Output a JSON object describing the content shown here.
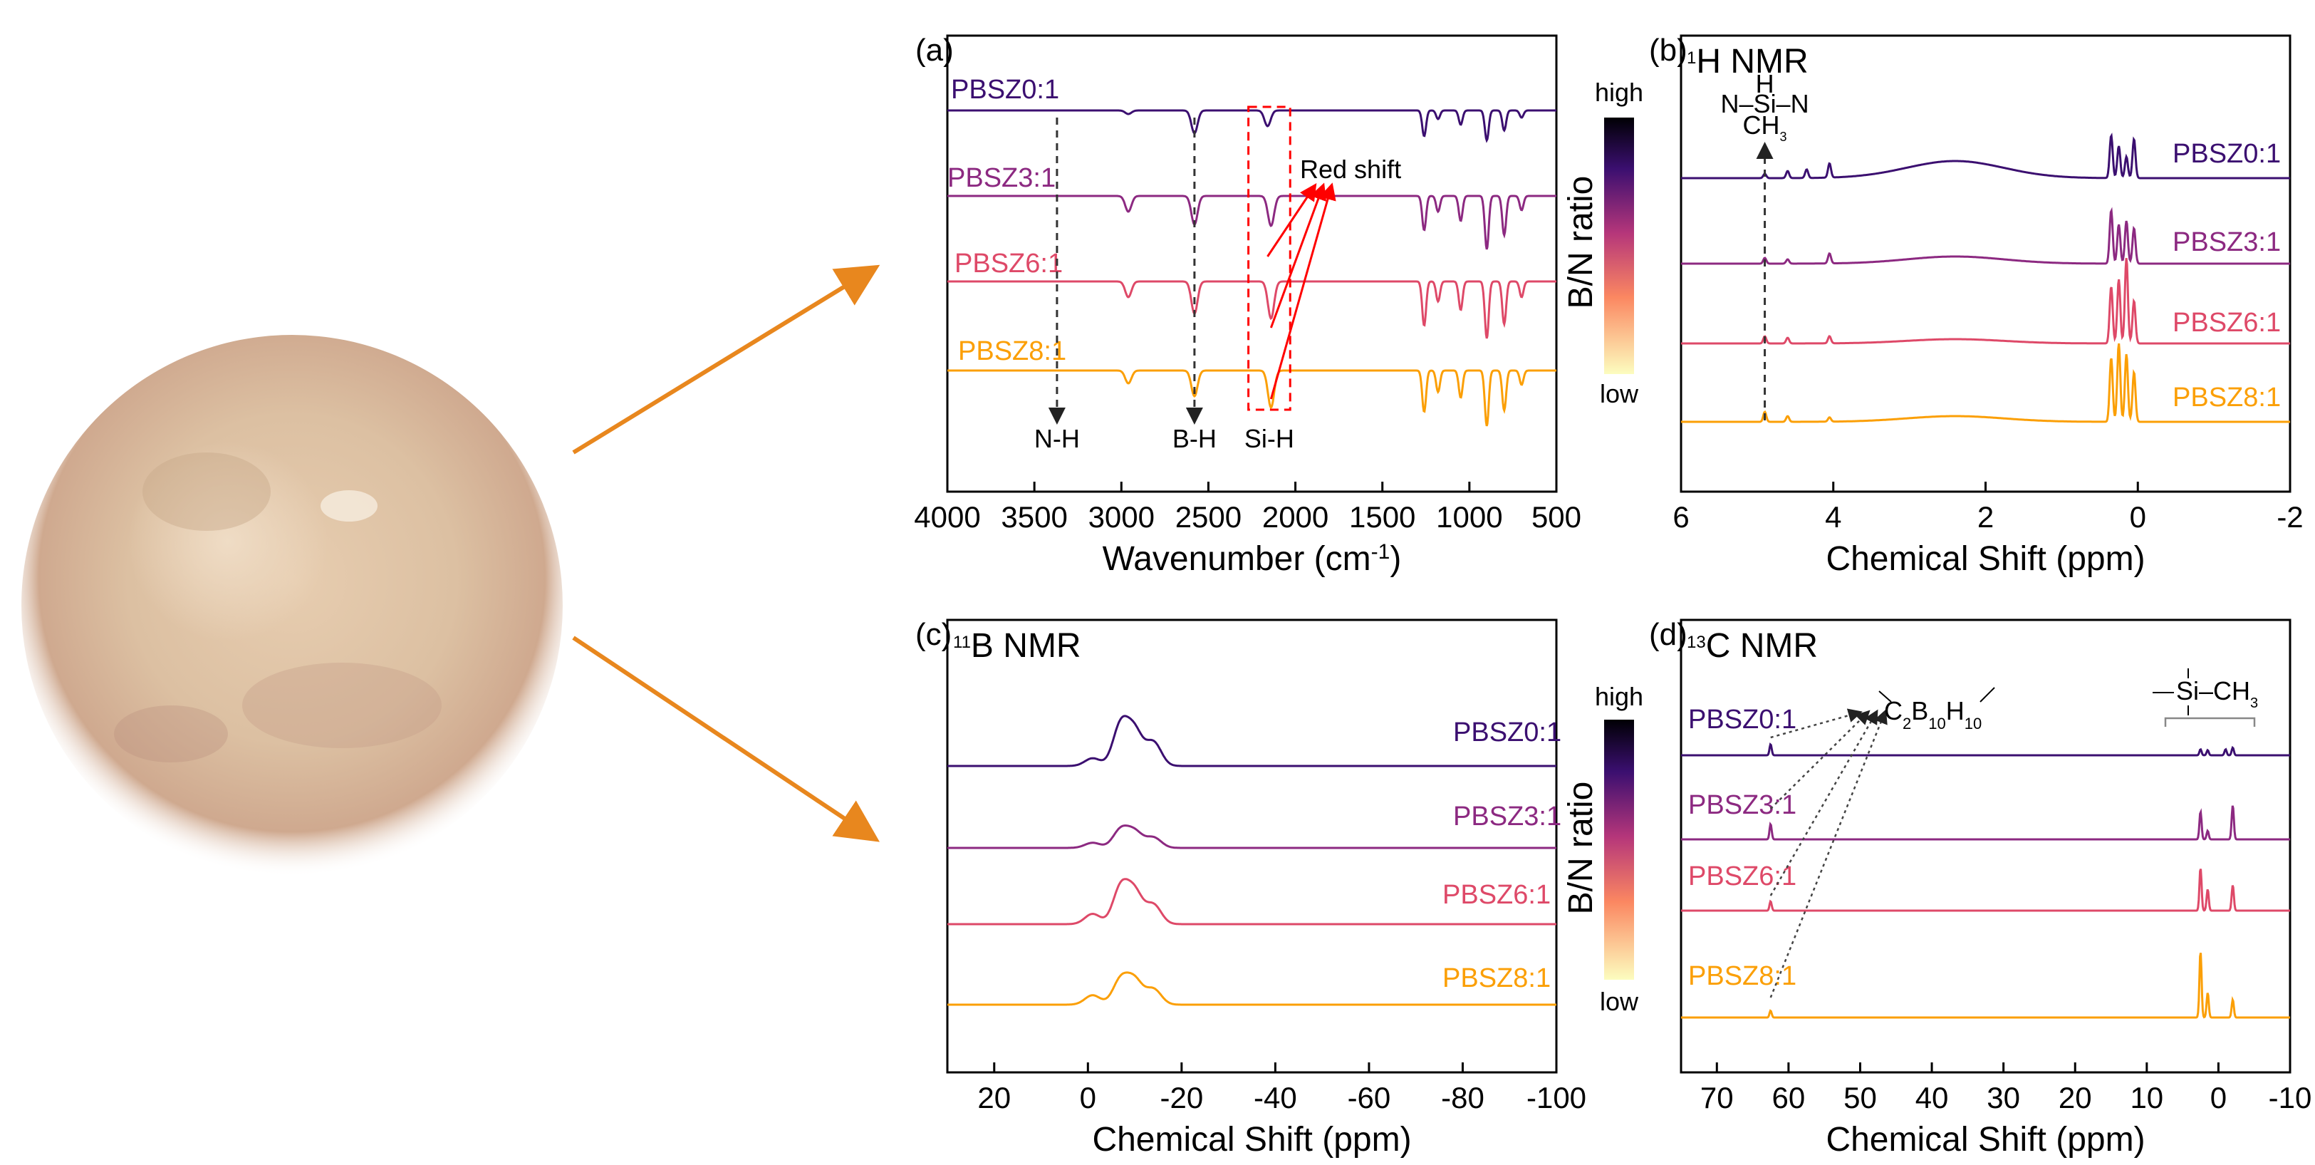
{
  "colors": {
    "s0": "#3b0f70",
    "s1": "#8c2981",
    "s2": "#de4968",
    "s3": "#fb9f06",
    "arrow": "#e8871e",
    "red": "#ff0000"
  },
  "series_names": [
    "PBSZ0:1",
    "PBSZ3:1",
    "PBSZ6:1",
    "PBSZ8:1"
  ],
  "colorbar": {
    "title": "B/N ratio",
    "high": "high",
    "low": "low"
  },
  "photo": {
    "description_icon": "sample-photo-icon"
  },
  "chart_data": [
    {
      "panel": "(a)",
      "type": "line",
      "title": "",
      "xlabel": "Wavenumber (cm",
      "xlabel_sup": "-1",
      "xlabel_end": ")",
      "xlim": [
        4000,
        500
      ],
      "xticks": [
        4000,
        3500,
        3000,
        2500,
        2000,
        1500,
        1000,
        500
      ],
      "series": [
        {
          "name": "PBSZ0:1",
          "peaks": [
            [
              2960,
              5
            ],
            [
              2580,
              32
            ],
            [
              2160,
              22
            ],
            [
              1260,
              36
            ],
            [
              1180,
              12
            ],
            [
              1050,
              20
            ],
            [
              900,
              42
            ],
            [
              800,
              28
            ],
            [
              700,
              10
            ]
          ]
        },
        {
          "name": "PBSZ3:1",
          "peaks": [
            [
              2960,
              22
            ],
            [
              2580,
              40
            ],
            [
              2140,
              42
            ],
            [
              1260,
              48
            ],
            [
              1180,
              22
            ],
            [
              1050,
              35
            ],
            [
              900,
              75
            ],
            [
              800,
              55
            ],
            [
              700,
              20
            ]
          ]
        },
        {
          "name": "PBSZ6:1",
          "peaks": [
            [
              2960,
              22
            ],
            [
              2580,
              45
            ],
            [
              2140,
              52
            ],
            [
              1260,
              62
            ],
            [
              1180,
              28
            ],
            [
              1050,
              40
            ],
            [
              900,
              80
            ],
            [
              800,
              60
            ],
            [
              700,
              22
            ]
          ]
        },
        {
          "name": "PBSZ8:1",
          "peaks": [
            [
              2960,
              18
            ],
            [
              2580,
              36
            ],
            [
              2140,
              52
            ],
            [
              1260,
              58
            ],
            [
              1180,
              30
            ],
            [
              1050,
              38
            ],
            [
              900,
              78
            ],
            [
              800,
              56
            ],
            [
              700,
              20
            ]
          ]
        }
      ],
      "annotations": {
        "nh": "N-H",
        "bh": "B-H",
        "sih": "Si-H",
        "red_shift": "Red shift"
      },
      "marker_x": {
        "nh": 3370,
        "bh": 2580,
        "sih_box": [
          2270,
          2030
        ]
      }
    },
    {
      "panel": "(b)",
      "type": "line",
      "title": "H NMR",
      "title_sup": "1",
      "xlabel": "Chemical Shift (ppm)",
      "xlim": [
        6,
        -2
      ],
      "xticks": [
        6,
        4,
        2,
        0,
        -2
      ],
      "series": [
        {
          "name": "PBSZ0:1",
          "peaks": [
            [
              4.9,
              6
            ],
            [
              4.6,
              10
            ],
            [
              4.35,
              12
            ],
            [
              4.05,
              20
            ],
            [
              0.35,
              60
            ],
            [
              0.25,
              45
            ],
            [
              0.15,
              30
            ],
            [
              0.05,
              55
            ]
          ]
        },
        {
          "name": "PBSZ3:1",
          "peaks": [
            [
              4.9,
              8
            ],
            [
              4.6,
              6
            ],
            [
              4.05,
              14
            ],
            [
              0.35,
              75
            ],
            [
              0.25,
              55
            ],
            [
              0.15,
              60
            ],
            [
              0.05,
              50
            ]
          ]
        },
        {
          "name": "PBSZ6:1",
          "peaks": [
            [
              4.9,
              10
            ],
            [
              4.6,
              8
            ],
            [
              4.05,
              10
            ],
            [
              0.35,
              80
            ],
            [
              0.25,
              90
            ],
            [
              0.15,
              120
            ],
            [
              0.05,
              60
            ]
          ]
        },
        {
          "name": "PBSZ8:1",
          "peaks": [
            [
              4.9,
              14
            ],
            [
              4.6,
              8
            ],
            [
              4.05,
              6
            ],
            [
              0.35,
              90
            ],
            [
              0.25,
              110
            ],
            [
              0.15,
              95
            ],
            [
              0.05,
              70
            ]
          ]
        }
      ],
      "annotations": {
        "structure_top": "H",
        "structure_mid": "N–Si–N",
        "structure_bottom": "CH",
        "structure_sub": "3"
      },
      "marker_x": 4.9
    },
    {
      "panel": "(c)",
      "type": "line",
      "title": "B NMR",
      "title_sup": "11",
      "xlabel": "Chemical Shift (ppm)",
      "xlim": [
        30,
        -100
      ],
      "xticks": [
        20,
        0,
        -20,
        -40,
        -60,
        -80,
        -100
      ],
      "series": [
        {
          "name": "PBSZ0:1",
          "peaks": [
            [
              -1,
              18
            ],
            [
              -7,
              95
            ],
            [
              -10,
              78
            ],
            [
              -14,
              55
            ]
          ]
        },
        {
          "name": "PBSZ3:1",
          "peaks": [
            [
              -1,
              12
            ],
            [
              -7,
              42
            ],
            [
              -10,
              36
            ],
            [
              -14,
              24
            ]
          ]
        },
        {
          "name": "PBSZ6:1",
          "peaks": [
            [
              -1,
              24
            ],
            [
              -7,
              85
            ],
            [
              -10,
              72
            ],
            [
              -14,
              45
            ]
          ]
        },
        {
          "name": "PBSZ8:1",
          "peaks": [
            [
              -1,
              22
            ],
            [
              -7,
              58
            ],
            [
              -10,
              55
            ],
            [
              -14,
              36
            ]
          ]
        }
      ]
    },
    {
      "panel": "(d)",
      "type": "line",
      "title": "C NMR",
      "title_sup": "13",
      "xlabel": "Chemical Shift (ppm)",
      "xlim": [
        75,
        -10
      ],
      "xticks": [
        70,
        60,
        50,
        40,
        30,
        20,
        10,
        0,
        -10
      ],
      "series": [
        {
          "name": "PBSZ0:1",
          "peaks": [
            [
              62.5,
              26
            ],
            [
              2.5,
              14
            ],
            [
              1.5,
              12
            ],
            [
              -1,
              14
            ],
            [
              -2,
              18
            ]
          ]
        },
        {
          "name": "PBSZ3:1",
          "peaks": [
            [
              62.5,
              36
            ],
            [
              2.5,
              65
            ],
            [
              1.5,
              20
            ],
            [
              -2,
              80
            ]
          ]
        },
        {
          "name": "PBSZ6:1",
          "peaks": [
            [
              62.5,
              22
            ],
            [
              2.5,
              100
            ],
            [
              1.5,
              50
            ],
            [
              -2,
              60
            ]
          ]
        },
        {
          "name": "PBSZ8:1",
          "peaks": [
            [
              62.5,
              16
            ],
            [
              2.5,
              155
            ],
            [
              1.5,
              58
            ],
            [
              -2,
              42
            ]
          ]
        }
      ],
      "annotations": {
        "carborane_pre": "C",
        "carborane_s1": "2",
        "carborane_mid": "B",
        "carborane_s2": "10",
        "carborane_mid2": "H",
        "carborane_s3": "10",
        "silyl": "Si–CH",
        "silyl_sub": "3"
      },
      "marker_x": 62.5
    }
  ]
}
